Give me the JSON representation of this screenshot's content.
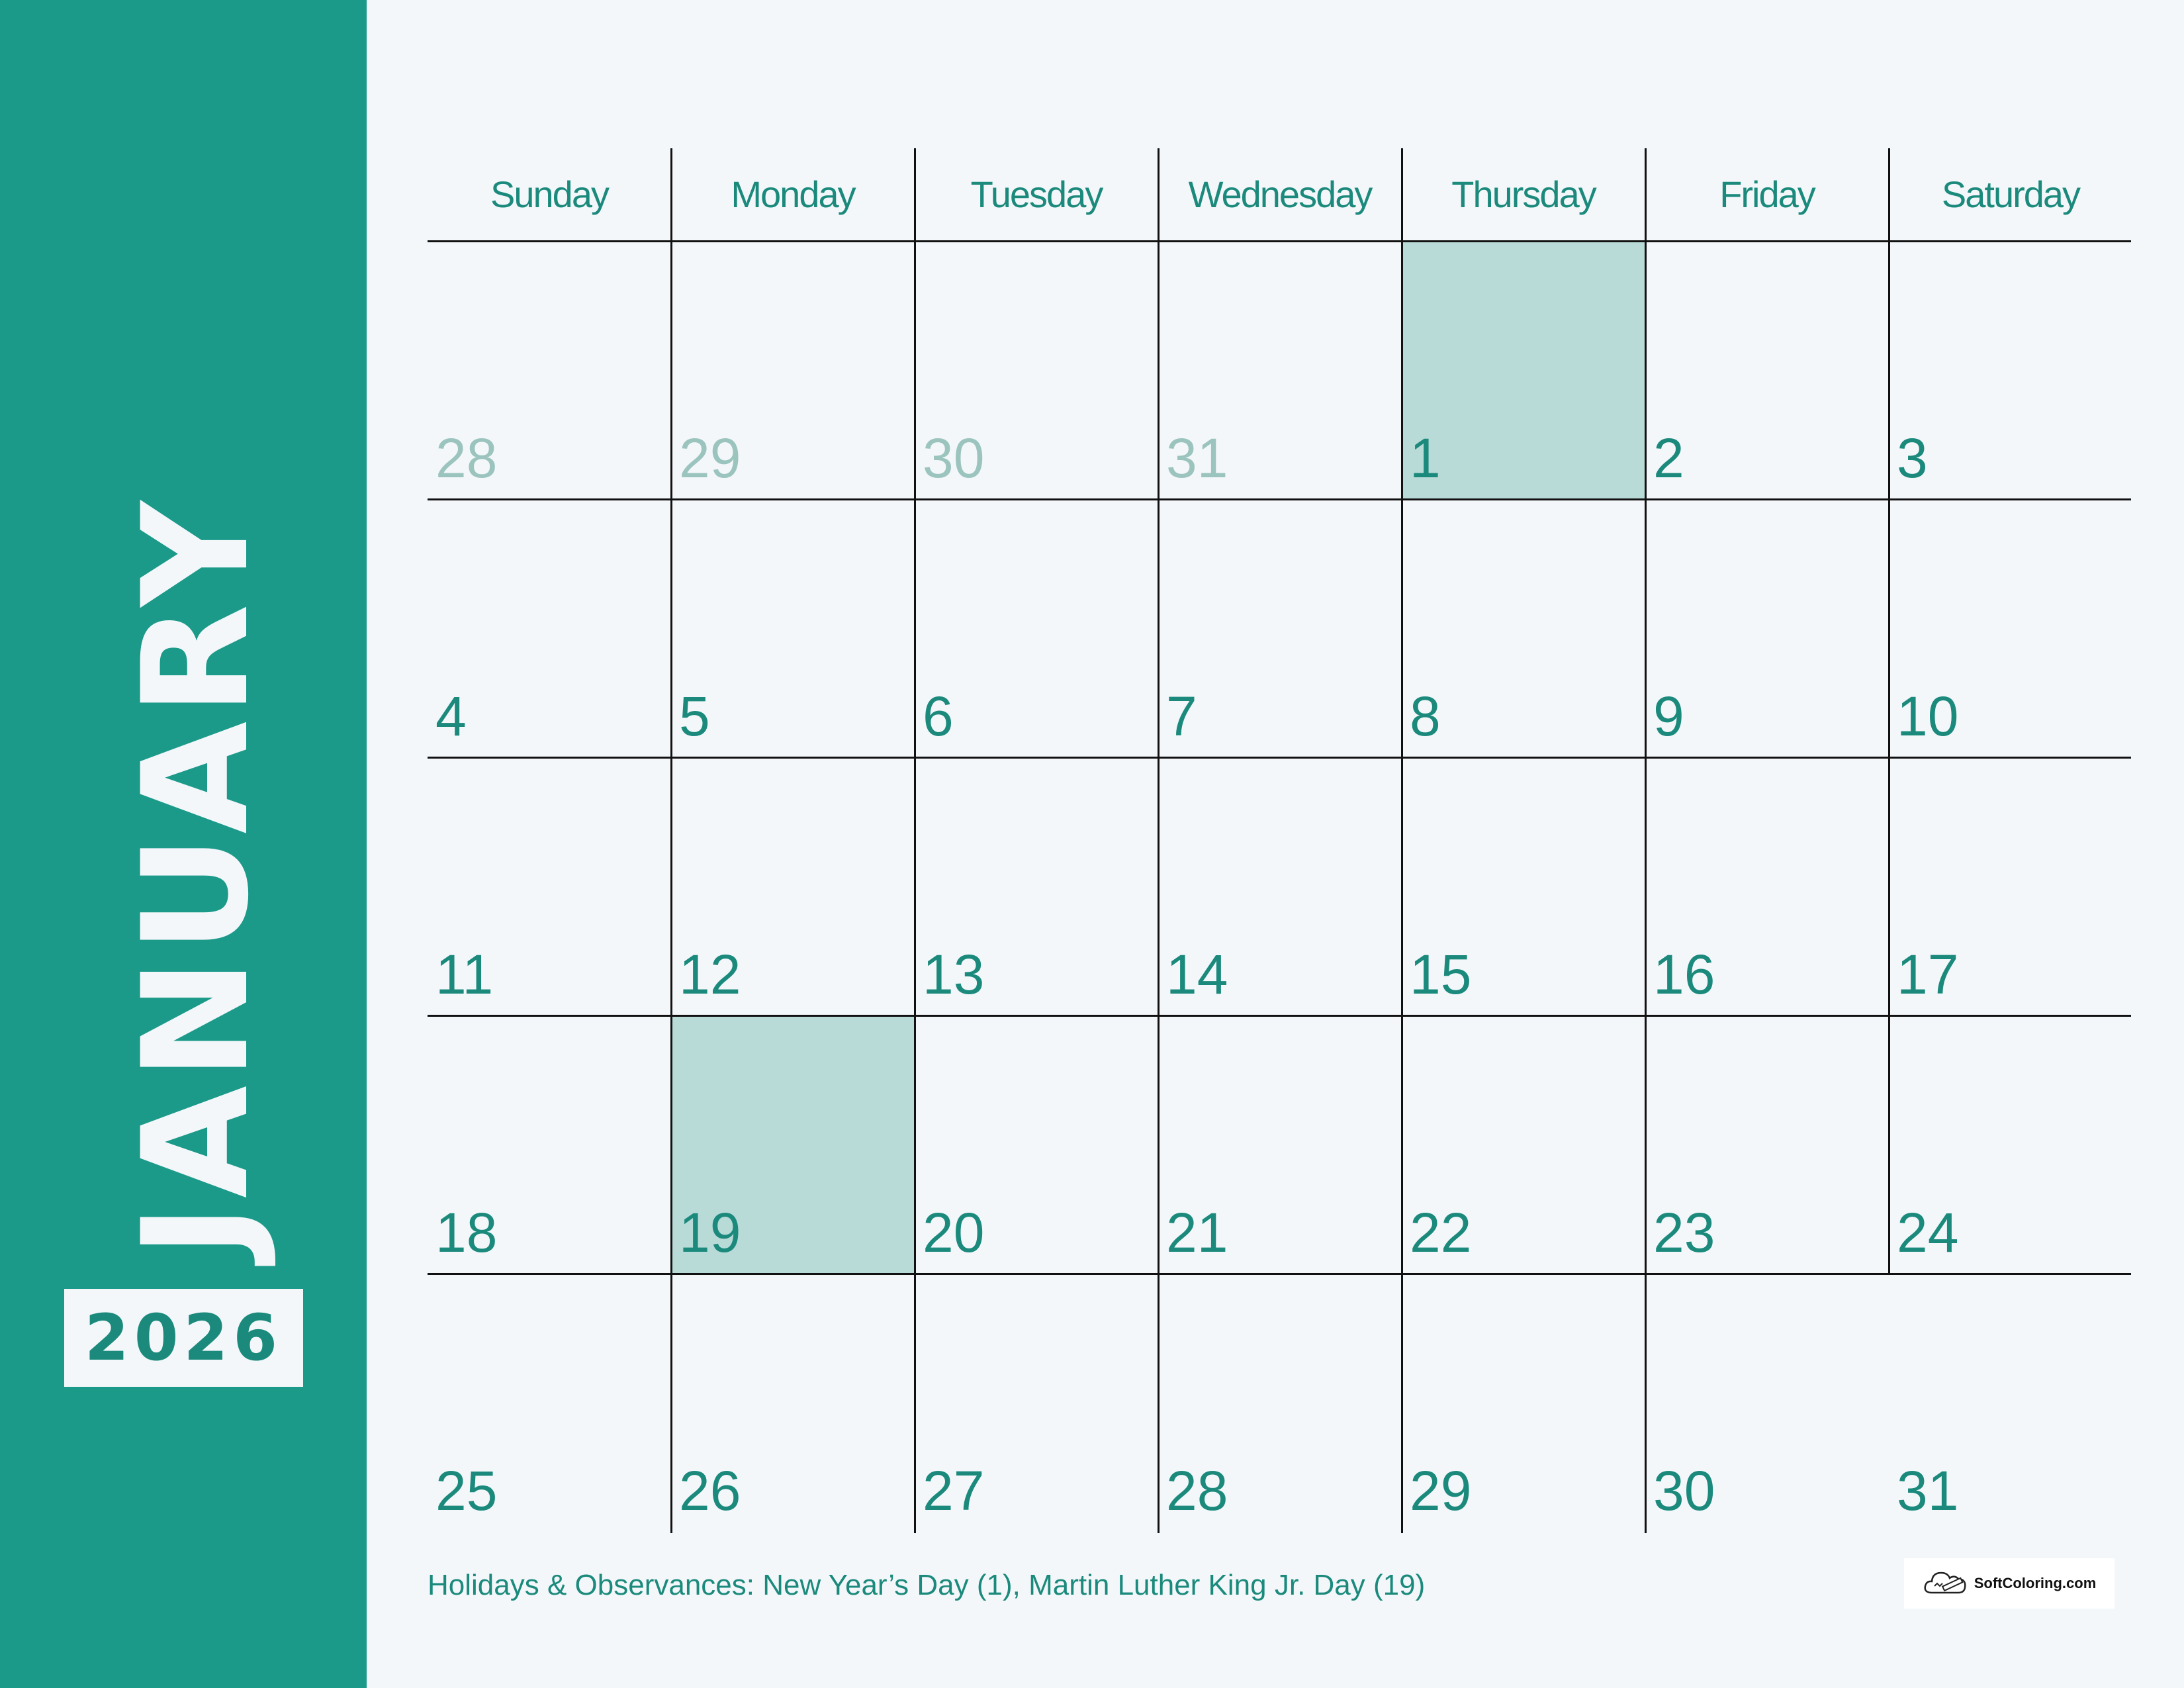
{
  "month": "JANUARY",
  "year": "2026",
  "weekdays": [
    "Sunday",
    "Monday",
    "Tuesday",
    "Wednesday",
    "Thursday",
    "Friday",
    "Saturday"
  ],
  "weeks": [
    [
      {
        "day": "28",
        "other": true
      },
      {
        "day": "29",
        "other": true
      },
      {
        "day": "30",
        "other": true
      },
      {
        "day": "31",
        "other": true
      },
      {
        "day": "1",
        "highlight": true
      },
      {
        "day": "2"
      },
      {
        "day": "3"
      }
    ],
    [
      {
        "day": "4"
      },
      {
        "day": "5"
      },
      {
        "day": "6"
      },
      {
        "day": "7"
      },
      {
        "day": "8"
      },
      {
        "day": "9"
      },
      {
        "day": "10"
      }
    ],
    [
      {
        "day": "11"
      },
      {
        "day": "12"
      },
      {
        "day": "13"
      },
      {
        "day": "14"
      },
      {
        "day": "15"
      },
      {
        "day": "16"
      },
      {
        "day": "17"
      }
    ],
    [
      {
        "day": "18"
      },
      {
        "day": "19",
        "highlight": true
      },
      {
        "day": "20"
      },
      {
        "day": "21"
      },
      {
        "day": "22"
      },
      {
        "day": "23"
      },
      {
        "day": "24"
      }
    ],
    [
      {
        "day": "25"
      },
      {
        "day": "26"
      },
      {
        "day": "27"
      },
      {
        "day": "28"
      },
      {
        "day": "29"
      },
      {
        "day": "30"
      },
      {
        "day": "31"
      }
    ]
  ],
  "footer": {
    "holidays": "Holidays & Observances: New Year’s Day (1), Martin Luther King Jr. Day (19)"
  },
  "logo": {
    "text": "SoftColoring.com",
    "icon": "cloud-pencil-icon"
  },
  "colors": {
    "sidebar": "#1b9a8a",
    "accent_text": "#1b8a7c",
    "highlight": "#b9dbd8",
    "faded_day": "#9cc4bf",
    "background": "#f3f7fa"
  }
}
